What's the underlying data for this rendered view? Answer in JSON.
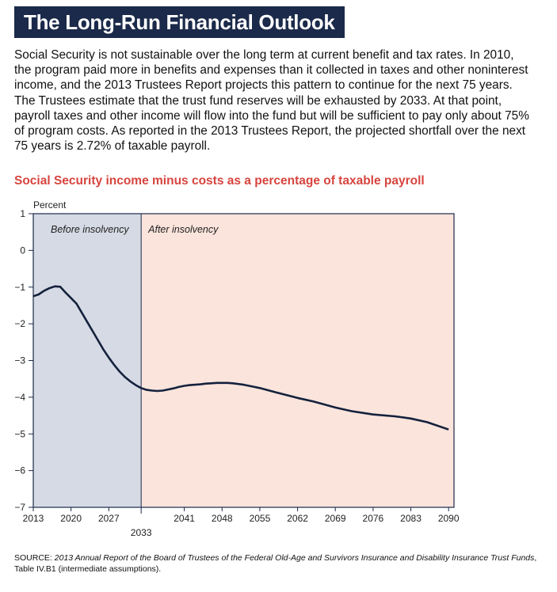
{
  "header": {
    "title": "The Long-Run Financial Outlook"
  },
  "paragraph": {
    "lines": [
      "Social Security is not sustainable over the long term at current benefit and tax rates. In 2010,",
      "the program paid more in benefits and expenses than it collected in taxes and other noninterest",
      "income, and the 2013 Trustees Report projects this pattern to continue for the next 75 years.",
      "The Trustees estimate that the trust fund reserves will be exhausted by 2033. At that point,",
      "payroll taxes and other income will flow into the fund but will be sufficient to pay only about 75%",
      "of program costs. As reported in the 2013 Trustees Report, the projected shortfall over the next",
      "75 years is 2.72% of taxable payroll."
    ]
  },
  "chart_data": {
    "type": "line",
    "title": "Social Security income minus costs as a percentage of taxable payroll",
    "y_label": "Percent",
    "x": [
      2013,
      2014,
      2015,
      2016,
      2017,
      2018,
      2019,
      2020,
      2021,
      2022,
      2023,
      2024,
      2025,
      2026,
      2027,
      2028,
      2029,
      2030,
      2031,
      2032,
      2033,
      2034,
      2035,
      2036,
      2037,
      2038,
      2039,
      2040,
      2041,
      2042,
      2043,
      2044,
      2045,
      2046,
      2047,
      2048,
      2049,
      2050,
      2051,
      2052,
      2053,
      2054,
      2055,
      2058,
      2062,
      2065,
      2069,
      2072,
      2076,
      2080,
      2083,
      2086,
      2090
    ],
    "series": [
      {
        "color": "#14213d",
        "values": [
          -1.25,
          -1.2,
          -1.1,
          -1.03,
          -0.98,
          -0.99,
          -1.15,
          -1.3,
          -1.45,
          -1.7,
          -1.95,
          -2.2,
          -2.45,
          -2.7,
          -2.92,
          -3.12,
          -3.3,
          -3.45,
          -3.57,
          -3.67,
          -3.75,
          -3.8,
          -3.82,
          -3.83,
          -3.82,
          -3.79,
          -3.76,
          -3.72,
          -3.69,
          -3.67,
          -3.66,
          -3.65,
          -3.63,
          -3.62,
          -3.61,
          -3.61,
          -3.61,
          -3.62,
          -3.64,
          -3.66,
          -3.69,
          -3.72,
          -3.75,
          -3.87,
          -4.02,
          -4.12,
          -4.28,
          -4.38,
          -4.47,
          -4.52,
          -4.58,
          -4.68,
          -4.88
        ]
      }
    ],
    "regions": [
      {
        "label": "Before insolvency",
        "from": 2013,
        "to": 2033,
        "color": "#d6dae4"
      },
      {
        "label": "After insolvency",
        "from": 2033,
        "to": 2091,
        "color": "#fbe4dc"
      }
    ],
    "xlim": [
      2013,
      2091
    ],
    "xticks": [
      2013,
      2020,
      2027,
      2033,
      2041,
      2048,
      2055,
      2062,
      2069,
      2076,
      2083,
      2090
    ],
    "ylim": [
      -7,
      1
    ],
    "yticks": [
      1,
      0,
      {
        "value": -1,
        "label": "−1"
      },
      {
        "value": -2,
        "label": "−2"
      },
      {
        "value": -3,
        "label": "−3"
      },
      {
        "value": -4,
        "label": "−4"
      },
      {
        "value": -5,
        "label": "−5"
      },
      {
        "value": -6,
        "label": "−6"
      },
      {
        "value": -7,
        "label": "−7"
      }
    ]
  },
  "source": {
    "label": "SOURCE:",
    "title": "2013 Annual Report of the Board of Trustees of the Federal Old-Age and Survivors Insurance and Disability Insurance Trust Funds",
    "rest": ", Table IV.B1 (intermediate assumptions)."
  }
}
